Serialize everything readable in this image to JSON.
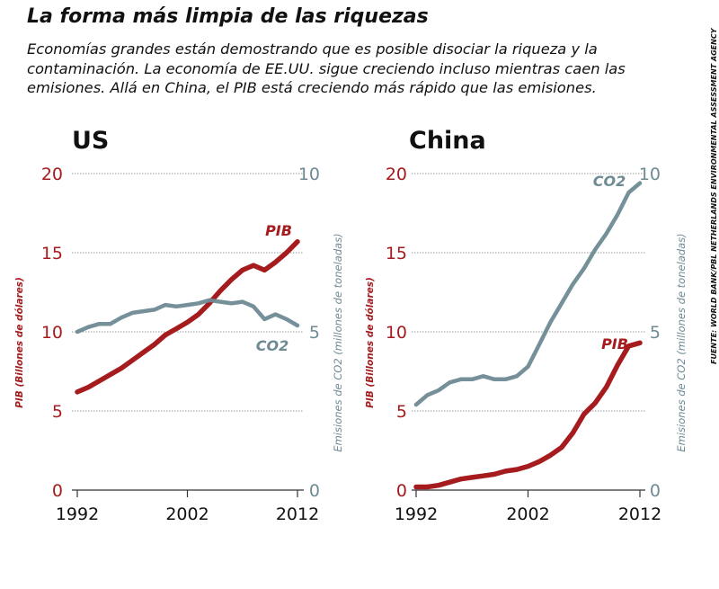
{
  "page": {
    "title": "La forma más limpia de las riquezas",
    "subtitle": "Economías grandes están demostrando que es posible disociar la riqueza y la contaminación. La economía de EE.UU. sigue creciendo incluso mientras caen las emisiones. Allá en China, el PIB está creciendo más rápido que las emisiones.",
    "source": "FUENTE: WORLD BANK/PBL NETHERLANDS ENVIRONMENTAL ASSESSMENT AGENCY"
  },
  "colors": {
    "gdp": "#a51b1e",
    "co2": "#6e8a93",
    "grid": "#999999",
    "text": "#111111"
  },
  "chart_data": [
    {
      "type": "line",
      "title": "US",
      "x": [
        1992,
        1993,
        1994,
        1995,
        1996,
        1997,
        1998,
        1999,
        2000,
        2001,
        2002,
        2003,
        2004,
        2005,
        2006,
        2007,
        2008,
        2009,
        2010,
        2011,
        2012
      ],
      "xticks": [
        "1992",
        "2002",
        "2012"
      ],
      "ylabel_left": "PIB (Billones de dólares)",
      "ylabel_right": "Emisiones de CO2 (millones de toneladas)",
      "ylim_left": [
        0,
        20
      ],
      "ylim_right": [
        0,
        10
      ],
      "yticks_left": [
        "0",
        "5",
        "10",
        "15",
        "20"
      ],
      "yticks_right": [
        "0",
        "5",
        "10"
      ],
      "series": [
        {
          "name": "PIB",
          "axis": "left",
          "values": [
            6.2,
            6.5,
            6.9,
            7.3,
            7.7,
            8.2,
            8.7,
            9.2,
            9.8,
            10.2,
            10.6,
            11.1,
            11.8,
            12.6,
            13.3,
            13.9,
            14.2,
            13.9,
            14.4,
            15.0,
            15.7
          ]
        },
        {
          "name": "CO2",
          "axis": "right",
          "values": [
            5.0,
            5.15,
            5.25,
            5.25,
            5.45,
            5.6,
            5.65,
            5.7,
            5.85,
            5.8,
            5.85,
            5.9,
            6.0,
            5.95,
            5.9,
            5.95,
            5.8,
            5.4,
            5.55,
            5.4,
            5.2
          ]
        }
      ]
    },
    {
      "type": "line",
      "title": "China",
      "x": [
        1992,
        1993,
        1994,
        1995,
        1996,
        1997,
        1998,
        1999,
        2000,
        2001,
        2002,
        2003,
        2004,
        2005,
        2006,
        2007,
        2008,
        2009,
        2010,
        2011,
        2012
      ],
      "xticks": [
        "1992",
        "2002",
        "2012"
      ],
      "ylabel_left": "PIB (Billones de dólares)",
      "ylabel_right": "Emisiones de CO2 (millones de toneladas)",
      "ylim_left": [
        0,
        20
      ],
      "ylim_right": [
        0,
        10
      ],
      "yticks_left": [
        "0",
        "5",
        "10",
        "15",
        "20"
      ],
      "yticks_right": [
        "0",
        "5",
        "10"
      ],
      "series": [
        {
          "name": "PIB",
          "axis": "left",
          "values": [
            0.2,
            0.2,
            0.3,
            0.5,
            0.7,
            0.8,
            0.9,
            1.0,
            1.2,
            1.3,
            1.5,
            1.8,
            2.2,
            2.7,
            3.6,
            4.8,
            5.5,
            6.5,
            7.9,
            9.1,
            9.3
          ]
        },
        {
          "name": "CO2",
          "axis": "right",
          "values": [
            2.7,
            3.0,
            3.15,
            3.4,
            3.5,
            3.5,
            3.6,
            3.5,
            3.5,
            3.6,
            3.9,
            4.6,
            5.3,
            5.9,
            6.5,
            7.0,
            7.6,
            8.1,
            8.7,
            9.4,
            9.7
          ]
        }
      ]
    }
  ]
}
